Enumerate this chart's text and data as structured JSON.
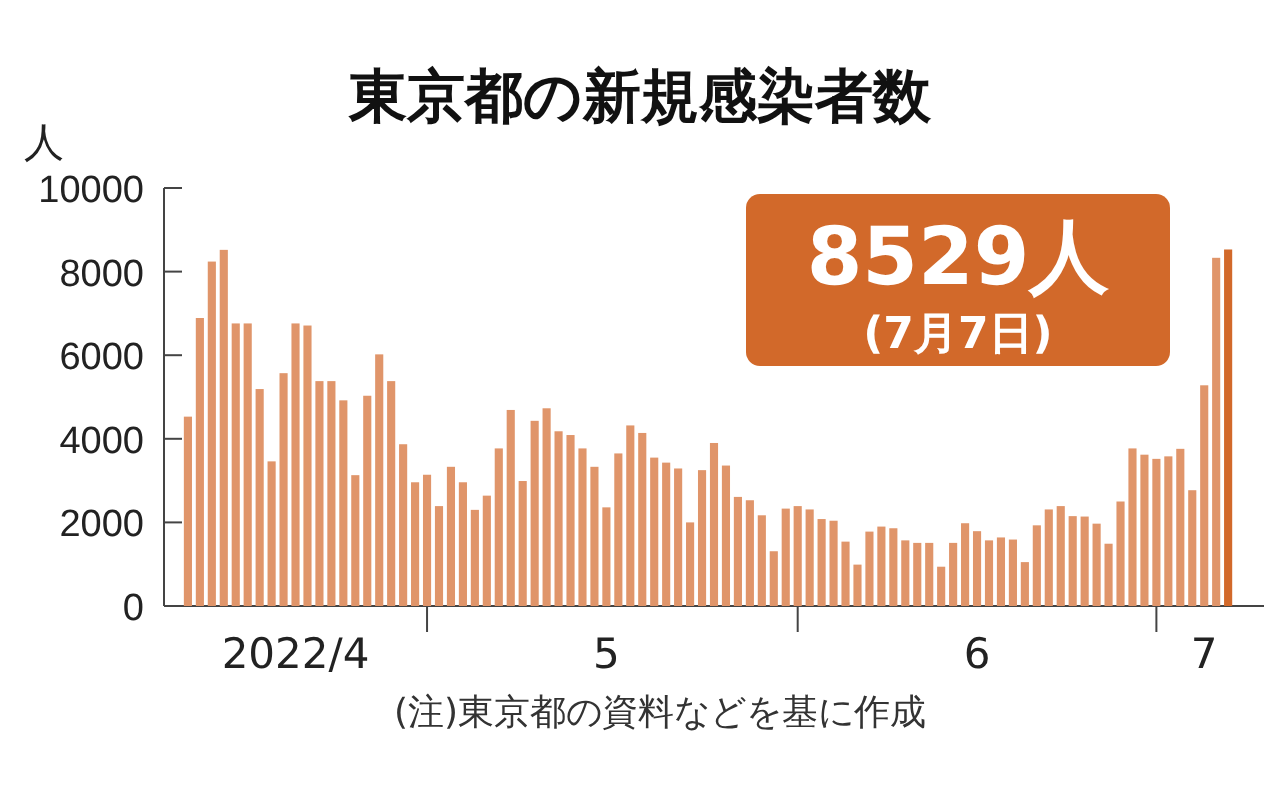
{
  "chart_data": {
    "type": "bar",
    "title": "東京都の新規感染者数",
    "ylabel": "人",
    "annotations": [
      "8529人",
      "(7月7日)",
      "(注)東京都の資料などを基に作成"
    ],
    "x": [
      "2022-04-11",
      "2022-04-12",
      "2022-04-13",
      "2022-04-14",
      "2022-04-15",
      "2022-04-16",
      "2022-04-17",
      "2022-04-18",
      "2022-04-19",
      "2022-04-20",
      "2022-04-21",
      "2022-04-22",
      "2022-04-23",
      "2022-04-24",
      "2022-04-25",
      "2022-04-26",
      "2022-04-27",
      "2022-04-28",
      "2022-04-29",
      "2022-04-30",
      "2022-05-01",
      "2022-05-02",
      "2022-05-03",
      "2022-05-04",
      "2022-05-05",
      "2022-05-06",
      "2022-05-07",
      "2022-05-08",
      "2022-05-09",
      "2022-05-10",
      "2022-05-11",
      "2022-05-12",
      "2022-05-13",
      "2022-05-14",
      "2022-05-15",
      "2022-05-16",
      "2022-05-17",
      "2022-05-18",
      "2022-05-19",
      "2022-05-20",
      "2022-05-21",
      "2022-05-22",
      "2022-05-23",
      "2022-05-24",
      "2022-05-25",
      "2022-05-26",
      "2022-05-27",
      "2022-05-28",
      "2022-05-29",
      "2022-05-30",
      "2022-05-31",
      "2022-06-01",
      "2022-06-02",
      "2022-06-03",
      "2022-06-04",
      "2022-06-05",
      "2022-06-06",
      "2022-06-07",
      "2022-06-08",
      "2022-06-09",
      "2022-06-10",
      "2022-06-11",
      "2022-06-12",
      "2022-06-13",
      "2022-06-14",
      "2022-06-15",
      "2022-06-16",
      "2022-06-17",
      "2022-06-18",
      "2022-06-19",
      "2022-06-20",
      "2022-06-21",
      "2022-06-22",
      "2022-06-23",
      "2022-06-24",
      "2022-06-25",
      "2022-06-26",
      "2022-06-27",
      "2022-06-28",
      "2022-06-29",
      "2022-06-30",
      "2022-07-01",
      "2022-07-02",
      "2022-07-03",
      "2022-07-04",
      "2022-07-05",
      "2022-07-06",
      "2022-07-07"
    ],
    "values": [
      4530,
      6890,
      8240,
      8520,
      6760,
      6760,
      5190,
      3460,
      5570,
      6760,
      6710,
      5380,
      5380,
      4920,
      3130,
      5030,
      6020,
      5380,
      3870,
      2960,
      3140,
      2390,
      3330,
      2960,
      2300,
      2640,
      3770,
      4690,
      2990,
      4430,
      4730,
      4180,
      4090,
      3770,
      3330,
      2360,
      3650,
      4320,
      4140,
      3550,
      3430,
      3290,
      2000,
      3250,
      3900,
      3360,
      2610,
      2530,
      2170,
      1310,
      2330,
      2390,
      2310,
      2080,
      2040,
      1540,
      990,
      1780,
      1900,
      1860,
      1570,
      1510,
      1510,
      940,
      1510,
      1980,
      1790,
      1570,
      1640,
      1590,
      1050,
      1930,
      2310,
      2390,
      2150,
      2140,
      1970,
      1490,
      2500,
      3770,
      3620,
      3520,
      3580,
      3760,
      2770,
      5280,
      8330,
      8529
    ],
    "colors": [
      "#e0956a",
      "#e0956a",
      "#e0956a",
      "#e0956a",
      "#e0956a",
      "#e0956a",
      "#e0956a",
      "#e0956a",
      "#e0956a",
      "#e0956a",
      "#e0956a",
      "#e0956a",
      "#e0956a",
      "#e0956a",
      "#e0956a",
      "#e0956a",
      "#e0956a",
      "#e0956a",
      "#e0956a",
      "#e0956a",
      "#e0956a",
      "#e0956a",
      "#e0956a",
      "#e0956a",
      "#e0956a",
      "#e0956a",
      "#e0956a",
      "#e0956a",
      "#e0956a",
      "#e0956a",
      "#e0956a",
      "#e0956a",
      "#e0956a",
      "#e0956a",
      "#e0956a",
      "#e0956a",
      "#e0956a",
      "#e0956a",
      "#e0956a",
      "#e0956a",
      "#e0956a",
      "#e0956a",
      "#e0956a",
      "#e0956a",
      "#e0956a",
      "#e0956a",
      "#e0956a",
      "#e0956a",
      "#e0956a",
      "#e0956a",
      "#e0956a",
      "#e0956a",
      "#e0956a",
      "#e0956a",
      "#e0956a",
      "#e0956a",
      "#e0956a",
      "#e0956a",
      "#e0956a",
      "#e0956a",
      "#e0956a",
      "#e0956a",
      "#e0956a",
      "#e0956a",
      "#e0956a",
      "#e0956a",
      "#e0956a",
      "#e0956a",
      "#e0956a",
      "#e0956a",
      "#e0956a",
      "#e0956a",
      "#e0956a",
      "#e0956a",
      "#e0956a",
      "#e0956a",
      "#e0956a",
      "#e0956a",
      "#e0956a",
      "#e0956a",
      "#e0956a",
      "#e0956a",
      "#e0956a",
      "#e0956a",
      "#e0956a",
      "#e0956a",
      "#e0956a",
      "#d2692a"
    ],
    "xlim": [
      "2022-04-09",
      "2022-07-10"
    ],
    "xticks": [
      {
        "value": "2022-05-01",
        "label": null
      },
      {
        "value": "2022-06-01",
        "label": null
      },
      {
        "value": "2022-07-01",
        "label": null
      },
      {
        "value": "2022-04-20",
        "label": "2022/4"
      },
      {
        "value": "2022-05-16",
        "label": "5"
      },
      {
        "value": "2022-06-16",
        "label": "6"
      },
      {
        "value": "2022-07-05",
        "label": "7"
      }
    ],
    "ylim": [
      0,
      10000
    ],
    "yticks": [
      0,
      2000,
      4000,
      6000,
      8000,
      10000
    ],
    "grid": false
  }
}
